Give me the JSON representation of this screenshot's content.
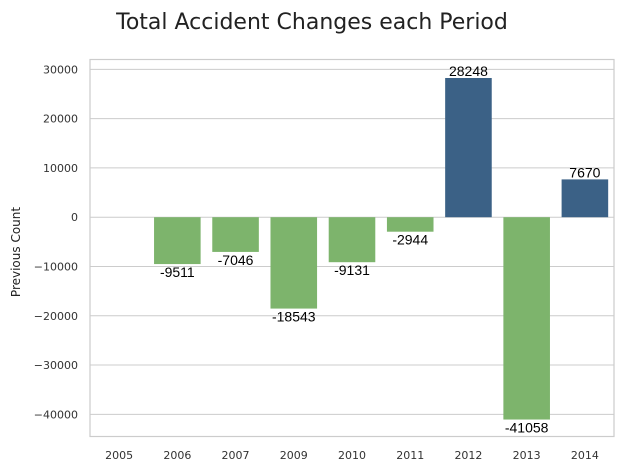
{
  "chart_data": {
    "type": "bar",
    "title": "Total Accident Changes each Period",
    "xlabel": "",
    "ylabel": "Previous Count",
    "categories": [
      "2005",
      "2006",
      "2007",
      "2009",
      "2010",
      "2011",
      "2012",
      "2013",
      "2014"
    ],
    "values": [
      null,
      -9511,
      -7046,
      -18543,
      -9131,
      -2944,
      28248,
      -41058,
      7670
    ],
    "data_labels": [
      "",
      "-9511",
      "-7046",
      "-18543",
      "-9131",
      "-2944",
      "28248",
      "-41058",
      "7670"
    ],
    "ylim": [
      -44500,
      32000
    ],
    "yticks": [
      30000,
      20000,
      10000,
      0,
      -10000,
      -20000,
      -30000,
      -40000
    ],
    "ytick_labels": [
      "30000",
      "20000",
      "10000",
      "0",
      "−10000",
      "−20000",
      "−30000",
      "−40000"
    ],
    "grid": true,
    "colors": {
      "positive": "#3b6186",
      "negative": "#7db46c"
    }
  }
}
